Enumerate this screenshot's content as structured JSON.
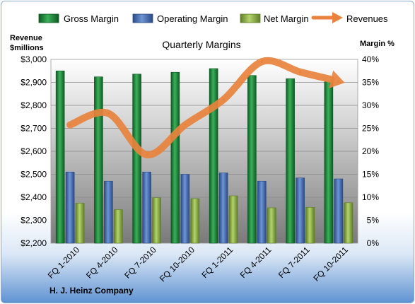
{
  "chart_data": {
    "type": "bar",
    "title": "Quarterly Margins",
    "left_axis_title": [
      "Revenue",
      "$millions"
    ],
    "right_axis_title": "Margin %",
    "footer": "H. J. Heinz Company",
    "categories": [
      "FQ 1-2010",
      "FQ 4-2010",
      "FQ 7-2010",
      "FQ 10-2010",
      "FQ 1-2011",
      "FQ 4-2011",
      "FQ 7-2011",
      "FQ 10-2011"
    ],
    "margin_series": [
      {
        "name": "Gross Margin",
        "color": "#1f8a3a",
        "values": [
          37.5,
          36.2,
          36.8,
          37.2,
          38.0,
          36.5,
          35.8,
          35.1
        ]
      },
      {
        "name": "Operating Margin",
        "color": "#4a72b8",
        "values": [
          15.5,
          13.5,
          15.5,
          15.0,
          15.3,
          13.5,
          14.2,
          14.0
        ]
      },
      {
        "name": "Net Margin",
        "color": "#8fb84a",
        "values": [
          8.7,
          7.3,
          9.9,
          9.7,
          10.3,
          7.7,
          7.8,
          8.8
        ]
      }
    ],
    "line_series": {
      "name": "Revenues",
      "color": "#e8823c",
      "values": [
        2715,
        2765,
        2585,
        2715,
        2825,
        2990,
        2945,
        2905
      ]
    },
    "left_axis": {
      "min": 2200,
      "max": 3000,
      "step": 100,
      "tick_labels": [
        "$2,200",
        "$2,300",
        "$2,400",
        "$2,500",
        "$2,600",
        "$2,700",
        "$2,800",
        "$2,900",
        "$3,000"
      ]
    },
    "right_axis": {
      "min": 0,
      "max": 40,
      "step": 5,
      "tick_labels": [
        "0%",
        "5%",
        "10%",
        "15%",
        "20%",
        "25%",
        "30%",
        "35%",
        "40%"
      ]
    },
    "grid": true,
    "legend_position": "top"
  }
}
